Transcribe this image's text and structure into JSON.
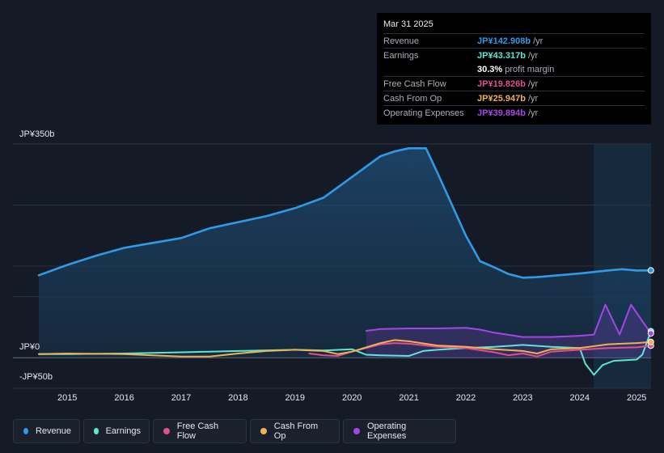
{
  "tooltip": {
    "date": "Mar 31 2025",
    "rows": [
      {
        "label": "Revenue",
        "value": "JP¥142.908b",
        "unit": "/yr",
        "color": "#2f9be8"
      },
      {
        "label": "Earnings",
        "value": "JP¥43.317b",
        "unit": "/yr",
        "color": "#5ce6d4"
      },
      {
        "label": "",
        "value": "30.3%",
        "unit": "profit margin",
        "color": "#ffffff"
      },
      {
        "label": "Free Cash Flow",
        "value": "JP¥19.826b",
        "unit": "/yr",
        "color": "#e0508a"
      },
      {
        "label": "Cash From Op",
        "value": "JP¥25.947b",
        "unit": "/yr",
        "color": "#f0b056"
      },
      {
        "label": "Operating Expenses",
        "value": "JP¥39.894b",
        "unit": "/yr",
        "color": "#a545e8"
      }
    ]
  },
  "legend": [
    {
      "name": "Revenue",
      "color": "#2f9be8"
    },
    {
      "name": "Earnings",
      "color": "#5ce6d4"
    },
    {
      "name": "Free Cash Flow",
      "color": "#e0508a"
    },
    {
      "name": "Cash From Op",
      "color": "#f0b056"
    },
    {
      "name": "Operating Expenses",
      "color": "#a545e8"
    }
  ],
  "chart_data": {
    "type": "area",
    "title": "",
    "xlabel": "",
    "ylabel": "",
    "ylim": [
      -50,
      350
    ],
    "y_tick_labels": [
      "JP¥350b",
      "JP¥0",
      "-JP¥50b"
    ],
    "x_tick_labels": [
      "2015",
      "2016",
      "2017",
      "2018",
      "2019",
      "2020",
      "2021",
      "2022",
      "2023",
      "2024",
      "2025"
    ],
    "series": [
      {
        "name": "Revenue",
        "color": "#2f9be8",
        "area": true,
        "x": [
          2014.5,
          2015.0,
          2015.5,
          2016.0,
          2016.5,
          2017.0,
          2017.5,
          2018.0,
          2018.5,
          2019.0,
          2019.5,
          2020.0,
          2020.5,
          2020.75,
          2021.0,
          2021.3,
          2021.5,
          2022.0,
          2022.25,
          2022.5,
          2022.75,
          2023.0,
          2023.25,
          2023.5,
          2024.0,
          2024.5,
          2024.75,
          2025.0,
          2025.25
        ],
        "values": [
          135,
          152,
          167,
          180,
          188,
          196,
          212,
          222,
          232,
          245,
          262,
          296,
          330,
          338,
          343,
          343,
          303,
          200,
          158,
          148,
          137,
          131,
          132,
          134,
          138,
          143,
          145,
          142.9,
          143
        ]
      },
      {
        "name": "Earnings",
        "color": "#5ce6d4",
        "area": false,
        "x": [
          2014.5,
          2015.0,
          2016.0,
          2017.0,
          2018.0,
          2019.0,
          2019.5,
          2020.0,
          2020.25,
          2020.5,
          2021.0,
          2021.25,
          2021.5,
          2022.0,
          2022.5,
          2023.0,
          2023.5,
          2024.0,
          2024.1,
          2024.25,
          2024.4,
          2024.6,
          2025.0,
          2025.1,
          2025.25
        ],
        "values": [
          6,
          6,
          7,
          9,
          11,
          13,
          12,
          14,
          5,
          4,
          3,
          11,
          13,
          16,
          18,
          21,
          18,
          16,
          -10,
          -28,
          -12,
          -5,
          -3,
          5,
          43.3
        ]
      },
      {
        "name": "Free Cash Flow",
        "color": "#e0508a",
        "area": false,
        "x": [
          2019.25,
          2019.5,
          2019.75,
          2020.0,
          2020.5,
          2020.75,
          2021.0,
          2021.5,
          2022.0,
          2022.5,
          2022.75,
          2023.0,
          2023.25,
          2023.5,
          2024.0,
          2024.5,
          2025.0,
          2025.25
        ],
        "values": [
          7,
          4,
          3,
          10,
          22,
          24,
          23,
          18,
          16,
          9,
          4,
          7,
          2,
          10,
          13,
          16,
          17,
          19.8
        ]
      },
      {
        "name": "Cash From Op",
        "color": "#f0b056",
        "area": false,
        "x": [
          2014.5,
          2015.0,
          2016.0,
          2016.5,
          2017.0,
          2017.5,
          2018.0,
          2018.5,
          2019.0,
          2019.5,
          2019.75,
          2020.0,
          2020.5,
          2020.75,
          2021.0,
          2021.5,
          2022.0,
          2022.5,
          2023.0,
          2023.25,
          2023.5,
          2024.0,
          2024.5,
          2025.0,
          2025.25
        ],
        "values": [
          6,
          7,
          6,
          4,
          2,
          2,
          7,
          11,
          13,
          11,
          6,
          10,
          24,
          29,
          27,
          20,
          18,
          14,
          11,
          7,
          14,
          16,
          22,
          24,
          25.9
        ]
      },
      {
        "name": "Operating Expenses",
        "color": "#a545e8",
        "area": true,
        "x": [
          2020.25,
          2020.5,
          2021.0,
          2021.5,
          2022.0,
          2022.25,
          2022.5,
          2023.0,
          2023.5,
          2024.0,
          2024.25,
          2024.45,
          2024.7,
          2024.9,
          2025.1,
          2025.25
        ],
        "values": [
          44,
          47,
          48,
          48,
          49,
          46,
          41,
          34,
          34,
          36,
          38,
          87,
          38,
          87,
          60,
          39.9
        ]
      }
    ]
  }
}
